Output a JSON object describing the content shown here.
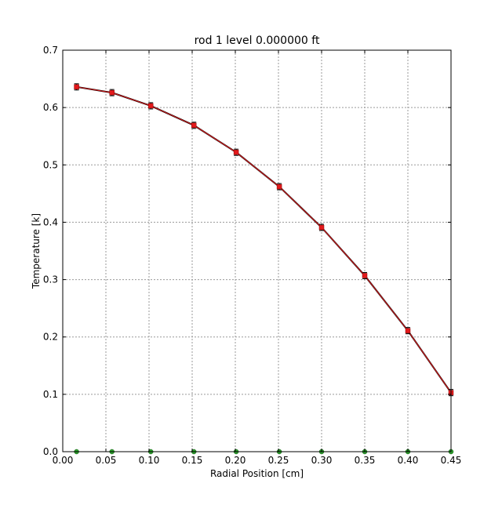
{
  "chart_data": {
    "type": "line",
    "title": "rod 1 level 0.000000 ft",
    "xlabel": "Radial Position [cm]",
    "ylabel": "Temperature [k]",
    "xlim": [
      0.0,
      0.45
    ],
    "ylim": [
      0.0,
      0.7
    ],
    "grid": true,
    "xticks": [
      "0.00",
      "0.05",
      "0.10",
      "0.15",
      "0.20",
      "0.25",
      "0.30",
      "0.35",
      "0.40",
      "0.45"
    ],
    "yticks": [
      "0.0",
      "0.1",
      "0.2",
      "0.3",
      "0.4",
      "0.5",
      "0.6",
      "0.7"
    ],
    "series": [
      {
        "color": "#000000",
        "marker": "none",
        "x": [
          0.016,
          0.057,
          0.102,
          0.152,
          0.201,
          0.251,
          0.3,
          0.35,
          0.4,
          0.45
        ],
        "y": [
          0.636,
          0.626,
          0.603,
          0.569,
          0.522,
          0.462,
          0.391,
          0.307,
          0.211,
          0.103
        ]
      },
      {
        "color": "#e31a1c",
        "marker": "square-errorbar",
        "x": [
          0.016,
          0.057,
          0.102,
          0.152,
          0.201,
          0.251,
          0.3,
          0.35,
          0.4,
          0.45
        ],
        "y": [
          0.636,
          0.626,
          0.603,
          0.569,
          0.522,
          0.462,
          0.391,
          0.307,
          0.211,
          0.103
        ]
      },
      {
        "color": "#2ca02c",
        "marker": "circle",
        "x": [
          0.016,
          0.057,
          0.102,
          0.152,
          0.201,
          0.251,
          0.3,
          0.35,
          0.4,
          0.45
        ],
        "y": [
          0.0,
          0.0,
          0.0,
          0.0,
          0.0,
          0.0,
          0.0,
          0.0,
          0.0,
          0.0
        ]
      }
    ]
  }
}
